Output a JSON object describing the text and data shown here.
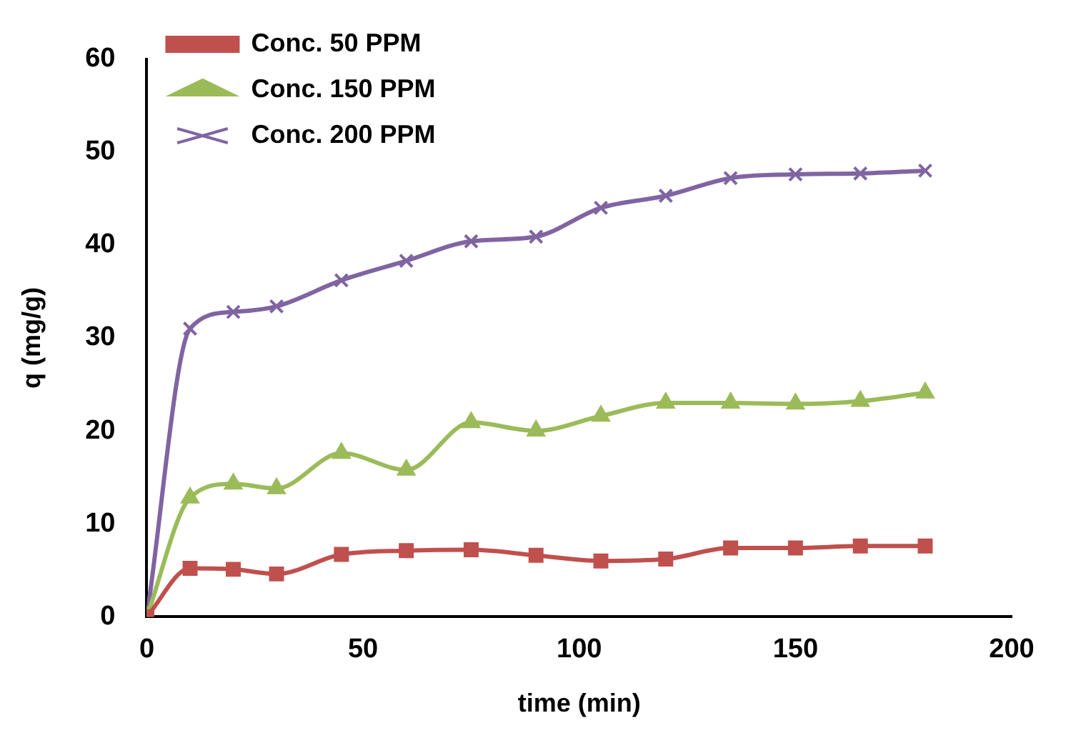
{
  "chart_data": {
    "type": "line",
    "xlabel": "time (min)",
    "ylabel": "q (mg/g)",
    "x": [
      0,
      10,
      20,
      30,
      45,
      60,
      75,
      90,
      105,
      120,
      135,
      150,
      165,
      180
    ],
    "series": [
      {
        "name": "Conc. 50 PPM",
        "color": "#c0504d",
        "marker": "square",
        "values": [
          0,
          5.2,
          5.1,
          4.6,
          6.7,
          7.1,
          7.2,
          6.6,
          6.0,
          6.2,
          7.4,
          7.4,
          7.6,
          7.6
        ]
      },
      {
        "name": "Conc. 150 PPM",
        "color": "#9bbb59",
        "marker": "triangle",
        "values": [
          0,
          12.8,
          14.3,
          13.8,
          17.6,
          15.8,
          20.9,
          20.0,
          21.6,
          23.0,
          23.0,
          22.9,
          23.2,
          24.1
        ]
      },
      {
        "name": "Conc. 200 PPM",
        "color": "#8064a2",
        "marker": "cross",
        "values": [
          0,
          31.0,
          32.8,
          33.4,
          36.2,
          38.3,
          40.4,
          40.9,
          44.0,
          45.3,
          47.2,
          47.6,
          47.7,
          48.0
        ]
      }
    ],
    "xlim": [
      0,
      200
    ],
    "xticks": [
      0,
      50,
      100,
      150,
      200
    ],
    "ylim": [
      0,
      60
    ],
    "yticks": [
      0,
      10,
      20,
      30,
      40,
      50,
      60
    ],
    "grid": false,
    "legend": "top left",
    "line_style": "solid"
  }
}
